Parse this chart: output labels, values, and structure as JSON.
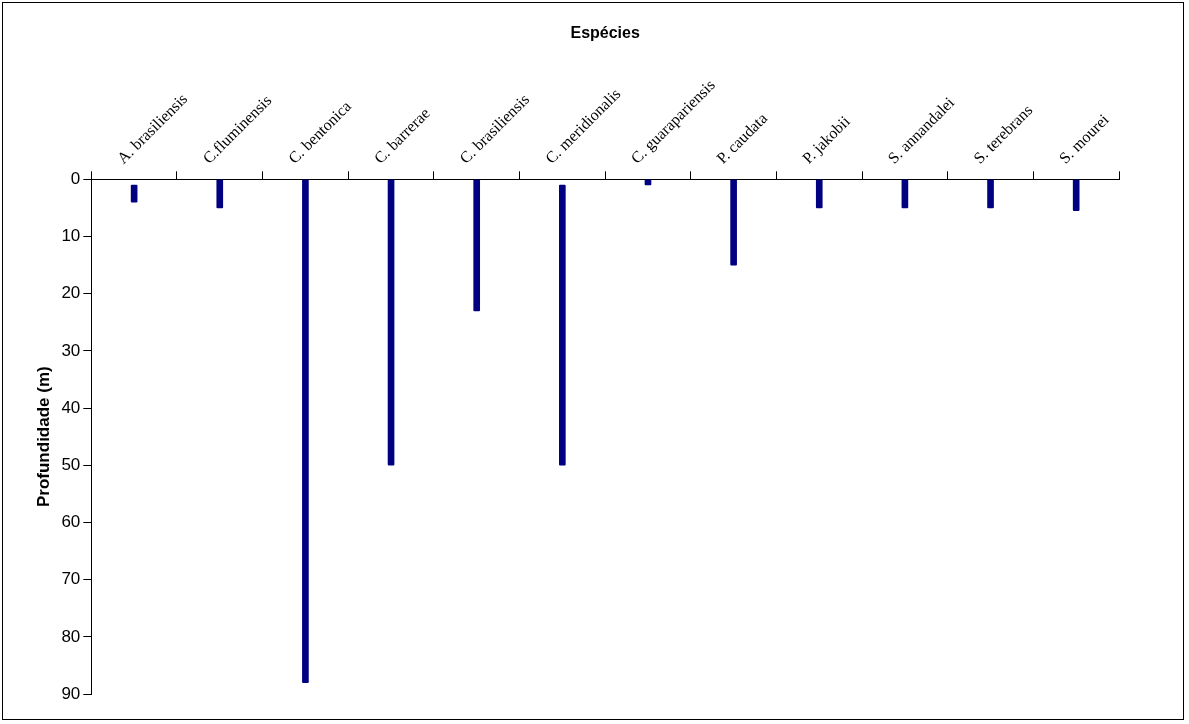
{
  "chart_data": {
    "type": "bar",
    "xlabel": "Espécies",
    "ylabel": "Profundidade (m)",
    "categories": [
      "A. brasiliensis",
      "C.fluminensis",
      "C. bentonica",
      "C. barrerae",
      "C. brasiliensis",
      "C. meridionalis",
      "C. guarapariensis",
      "P. caudata",
      "P. jakobii",
      "S. annandalei",
      "S. terebrans",
      "S. mourei"
    ],
    "base": [
      1,
      0,
      0,
      0,
      0,
      1,
      0,
      0,
      0,
      0,
      0,
      0
    ],
    "values": [
      3,
      5,
      88,
      50,
      23,
      49,
      1,
      15,
      5,
      5,
      5,
      5.5
    ],
    "color": "#000080",
    "ylim": [
      90,
      0
    ],
    "yticks": [
      0,
      10,
      20,
      30,
      40,
      50,
      60,
      70,
      80,
      90
    ],
    "grid": false,
    "legend": false
  }
}
